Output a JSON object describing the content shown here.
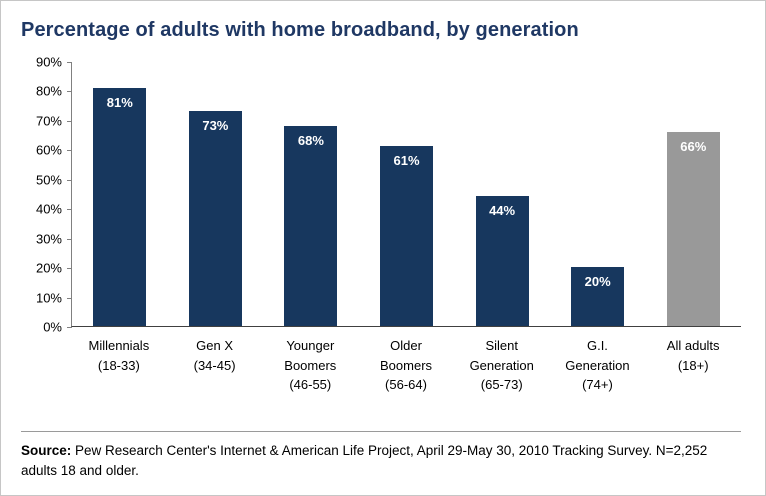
{
  "title": "Percentage of adults with home broadband, by generation",
  "chart_data": {
    "type": "bar",
    "title": "Percentage of adults with home broadband, by generation",
    "categories": [
      [
        "Millennials",
        "(18-33)"
      ],
      [
        "Gen X",
        "(34-45)"
      ],
      [
        "Younger",
        "Boomers",
        "(46-55)"
      ],
      [
        "Older",
        "Boomers",
        "(56-64)"
      ],
      [
        "Silent",
        "Generation",
        "(65-73)"
      ],
      [
        "G.I.",
        "Generation",
        "(74+)"
      ],
      [
        "All adults",
        "(18+)"
      ]
    ],
    "values": [
      81,
      73,
      68,
      61,
      44,
      20,
      66
    ],
    "value_labels": [
      "81%",
      "73%",
      "68%",
      "61%",
      "44%",
      "20%",
      "66%"
    ],
    "bar_colors": [
      "#17375E",
      "#17375E",
      "#17375E",
      "#17375E",
      "#17375E",
      "#17375E",
      "#999999"
    ],
    "xlabel": "",
    "ylabel": "",
    "ylim": [
      0,
      90
    ],
    "ytick_step": 10,
    "ytick_suffix": "%",
    "grid": false,
    "legend": "none"
  },
  "source": {
    "label": "Source:",
    "text": " Pew Research Center's Internet & American Life Project, April 29-May 30, 2010 Tracking Survey. N=2,252 adults 18 and older."
  },
  "colors": {
    "bar_primary": "#17375E",
    "bar_all_adults": "#999999",
    "title": "#1F3864",
    "axis": "#808080",
    "frame_border": "#c6c6c6"
  }
}
